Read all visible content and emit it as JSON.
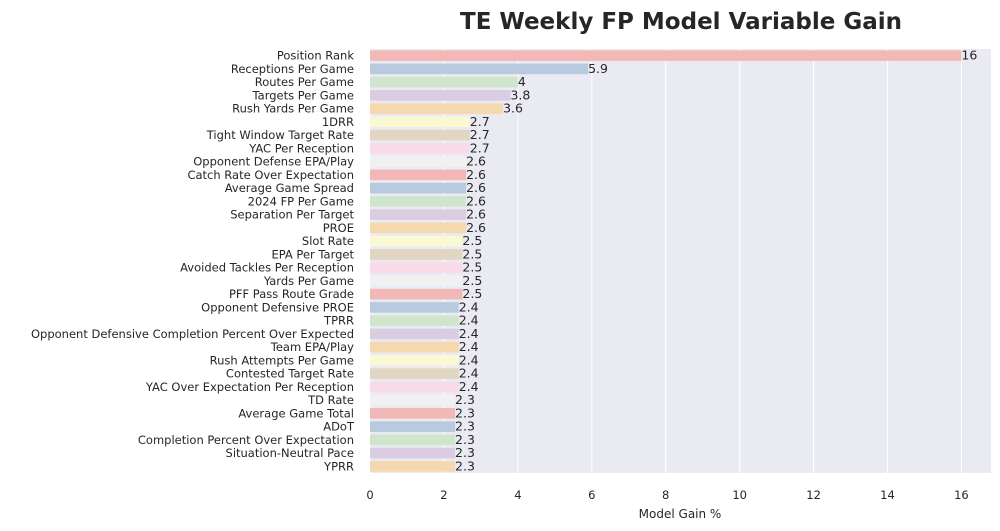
{
  "chart_data": {
    "type": "bar",
    "orientation": "horizontal",
    "title": "TE Weekly FP Model Variable Gain",
    "xlabel": "Model Gain %",
    "ylabel": "",
    "xlim": [
      0,
      16.8
    ],
    "xticks": [
      0,
      2,
      4,
      6,
      8,
      10,
      12,
      14,
      16
    ],
    "grid": true,
    "categories": [
      "Position Rank",
      "Receptions Per Game",
      "Routes Per Game",
      "Targets Per Game",
      "Rush Yards Per Game",
      "1DRR",
      "Tight Window Target Rate",
      "YAC Per Reception",
      "Opponent Defense EPA/Play",
      "Catch Rate Over Expectation",
      "Average Game Spread",
      "2024 FP Per Game",
      "Separation Per Target",
      "PROE",
      "Slot Rate",
      "EPA Per Target",
      "Avoided Tackles Per Reception",
      "Yards Per Game",
      "PFF Pass Route Grade",
      "Opponent Defensive PROE",
      "TPRR",
      "Opponent Defensive Completion Percent Over Expected",
      "Team EPA/Play",
      "Rush Attempts Per Game",
      "Contested Target Rate",
      "YAC Over Expectation Per Reception",
      "TD Rate",
      "Average Game Total",
      "ADoT",
      "Completion Percent Over Expectation",
      "Situation-Neutral Pace",
      "YPRR"
    ],
    "values": [
      16,
      5.9,
      4,
      3.8,
      3.6,
      2.7,
      2.7,
      2.7,
      2.6,
      2.6,
      2.6,
      2.6,
      2.6,
      2.6,
      2.5,
      2.5,
      2.5,
      2.5,
      2.5,
      2.4,
      2.4,
      2.4,
      2.4,
      2.4,
      2.4,
      2.4,
      2.3,
      2.3,
      2.3,
      2.3,
      2.3,
      2.3
    ],
    "value_labels": [
      "16",
      "5.9",
      "4",
      "3.8",
      "3.6",
      "2.7",
      "2.7",
      "2.7",
      "2.6",
      "2.6",
      "2.6",
      "2.6",
      "2.6",
      "2.6",
      "2.5",
      "2.5",
      "2.5",
      "2.5",
      "2.5",
      "2.4",
      "2.4",
      "2.4",
      "2.4",
      "2.4",
      "2.4",
      "2.4",
      "2.3",
      "2.3",
      "2.3",
      "2.3",
      "2.3",
      "2.3"
    ],
    "palette": [
      "#f2b8b5",
      "#b8cbde",
      "#d0e6cc",
      "#dbcde1",
      "#f5d8ae",
      "#fbf9d3",
      "#e1d6c2",
      "#f8dae9",
      "#f1f1f1"
    ],
    "background": "#eaeaf2",
    "grid_color": "#ffffff"
  }
}
